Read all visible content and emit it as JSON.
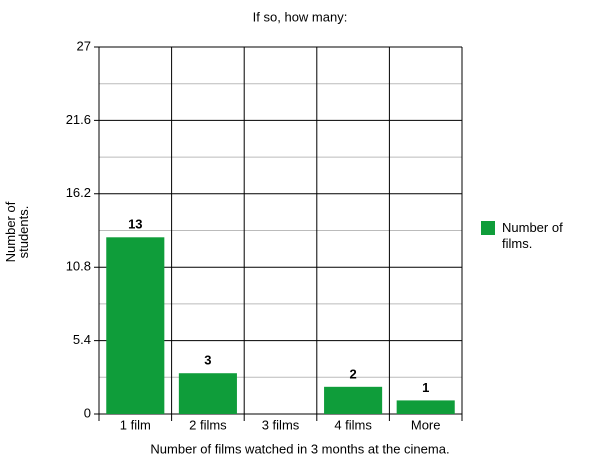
{
  "chart_data": {
    "type": "bar",
    "title": "If so, how many:",
    "x_label": "Number of films watched in 3 months at the cinema.",
    "y_label": "Number of students.",
    "categories": [
      "1 film",
      "2 films",
      "3 films",
      "4 films",
      "More"
    ],
    "series": [
      {
        "name": "Number of films.",
        "color": "#0f9d3a",
        "values": [
          13,
          3,
          0,
          2,
          1
        ]
      }
    ],
    "ylim": [
      0,
      27
    ],
    "yticks": [
      0,
      5.4,
      10.8,
      16.2,
      21.6,
      27
    ],
    "grid": true,
    "legend": "right"
  }
}
